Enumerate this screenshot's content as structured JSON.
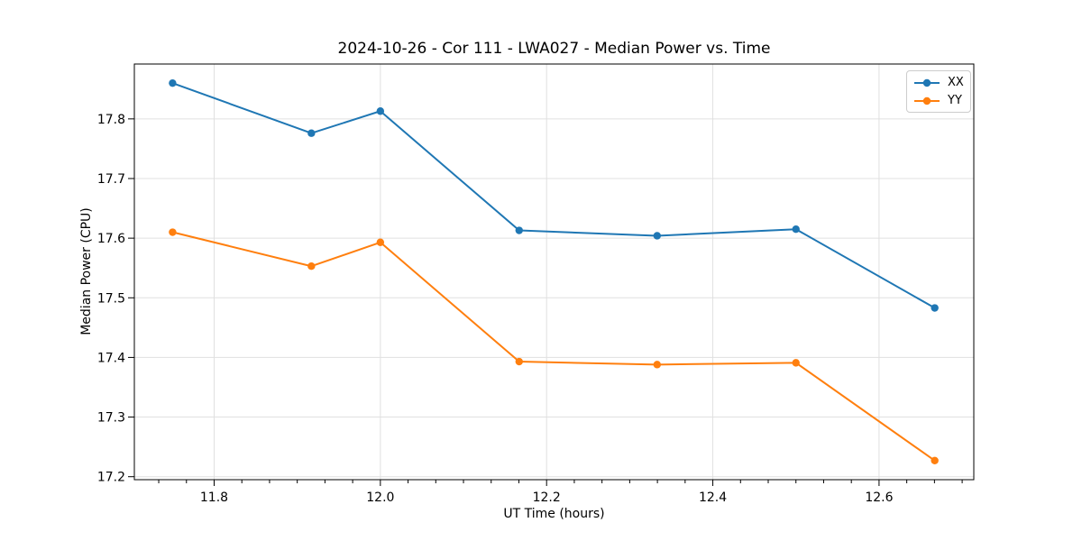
{
  "chart_data": {
    "type": "line",
    "title": "2024-10-26 - Cor 111 - LWA027 - Median Power vs. Time",
    "xlabel": "UT Time (hours)",
    "ylabel": "Median Power (CPU)",
    "x": [
      11.75,
      11.917,
      12.0,
      12.167,
      12.333,
      12.5,
      12.667
    ],
    "series": [
      {
        "name": "XX",
        "color": "#1f77b4",
        "values": [
          17.86,
          17.776,
          17.813,
          17.613,
          17.604,
          17.615,
          17.483
        ]
      },
      {
        "name": "YY",
        "color": "#ff7f0e",
        "values": [
          17.61,
          17.553,
          17.593,
          17.393,
          17.388,
          17.391,
          17.227
        ]
      }
    ],
    "xlim": [
      11.704,
      12.714
    ],
    "ylim": [
      17.195,
      17.892
    ],
    "xticks": [
      11.8,
      12.0,
      12.2,
      12.4,
      12.6
    ],
    "yticks": [
      17.2,
      17.3,
      17.4,
      17.5,
      17.6,
      17.7,
      17.8
    ],
    "x_minor_divisions": 6,
    "grid": true,
    "grid_color": "#e0e0e0",
    "axis_color": "#000000",
    "legend_position": "upper right",
    "marker": "circle"
  }
}
